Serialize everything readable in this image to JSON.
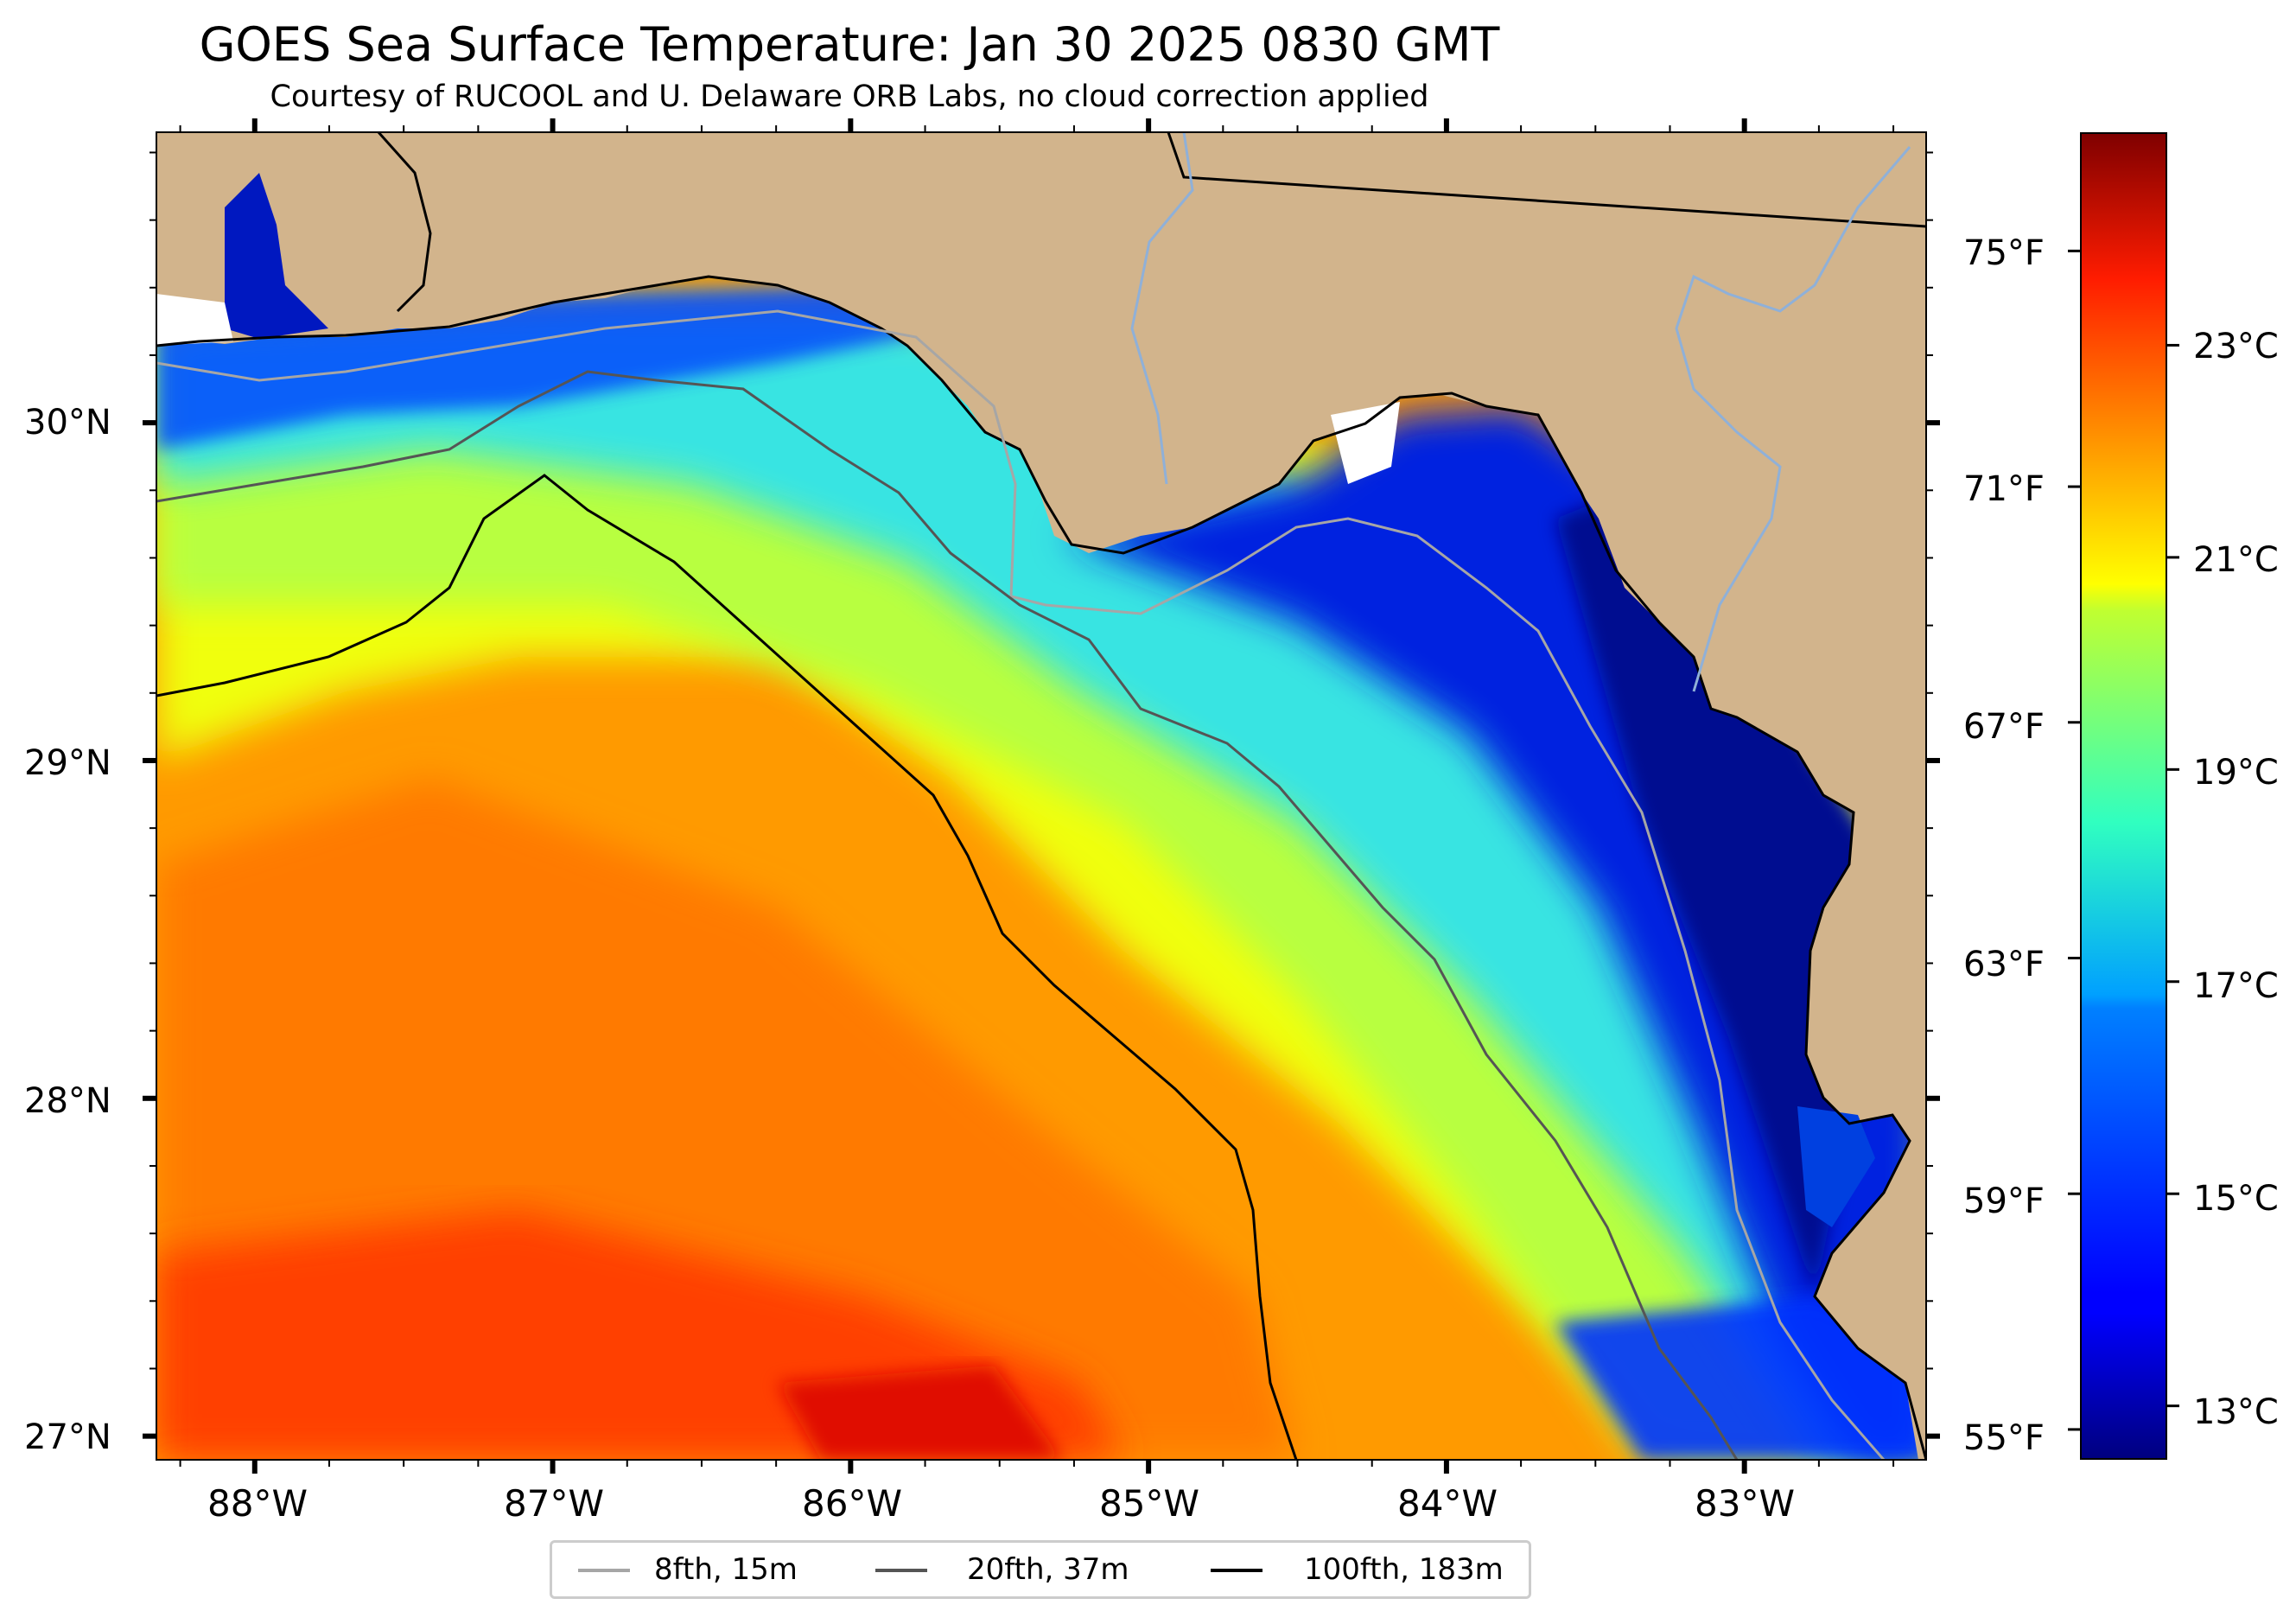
{
  "title": "GOES Sea Surface Temperature: Jan 30 2025 0830 GMT",
  "subtitle": "Courtesy of RUCOOL and U. Delaware ORB Labs, no cloud correction applied",
  "map": {
    "extent": {
      "lon": [
        -88.33,
        -82.39
      ],
      "lat": [
        26.93,
        30.86
      ]
    },
    "land_color": "#d2b48c",
    "lat_labels": [
      "30°N",
      "29°N",
      "28°N",
      "27°N"
    ],
    "lat_values": [
      30,
      29,
      28,
      27
    ],
    "lon_labels": [
      "88°W",
      "87°W",
      "86°W",
      "85°W",
      "84°W",
      "83°W"
    ],
    "lon_values": [
      -88,
      -87,
      -86,
      -85,
      -84,
      -83
    ]
  },
  "colorbar": {
    "colormap": "jet",
    "range_c": [
      12.5,
      25.0
    ],
    "celsius_labels": [
      "23°C",
      "21°C",
      "19°C",
      "17°C",
      "15°C",
      "13°C"
    ],
    "celsius_values": [
      23,
      21,
      19,
      17,
      15,
      13
    ],
    "fahrenheit_labels": [
      "75°F",
      "71°F",
      "67°F",
      "63°F",
      "59°F",
      "55°F"
    ],
    "fahrenheit_values": [
      75,
      71,
      67,
      63,
      59,
      55
    ]
  },
  "legend": {
    "items": [
      {
        "label": "8fth, 15m",
        "color": "#a6a6a6"
      },
      {
        "label": "20fth, 37m",
        "color": "#555555"
      },
      {
        "label": "100fth, 183m",
        "color": "#000000"
      }
    ]
  }
}
